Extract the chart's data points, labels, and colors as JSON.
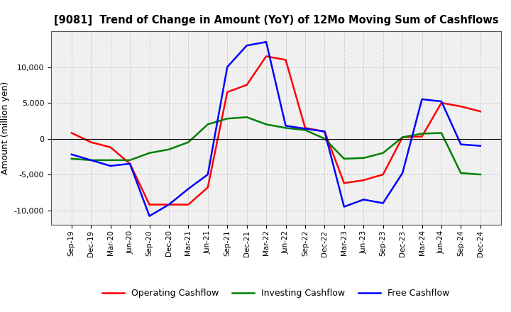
{
  "title": "[9081]  Trend of Change in Amount (YoY) of 12Mo Moving Sum of Cashflows",
  "ylabel": "Amount (million yen)",
  "xlabels": [
    "Sep-19",
    "Dec-19",
    "Mar-20",
    "Jun-20",
    "Sep-20",
    "Dec-20",
    "Mar-21",
    "Jun-21",
    "Sep-21",
    "Dec-21",
    "Mar-22",
    "Jun-22",
    "Sep-22",
    "Dec-22",
    "Mar-23",
    "Jun-23",
    "Sep-23",
    "Dec-23",
    "Mar-24",
    "Jun-24",
    "Sep-24",
    "Dec-24"
  ],
  "operating": [
    800,
    -500,
    -1200,
    -3500,
    -9200,
    -9200,
    -9200,
    -6800,
    6500,
    7500,
    11500,
    11000,
    1500,
    1000,
    -6200,
    -5800,
    -5000,
    200,
    300,
    5000,
    4500,
    3800
  ],
  "investing": [
    -2800,
    -3000,
    -3000,
    -3000,
    -2000,
    -1500,
    -500,
    2000,
    2800,
    3000,
    2000,
    1500,
    1200,
    0,
    -2800,
    -2700,
    -2000,
    200,
    700,
    800,
    -4800,
    -5000
  ],
  "free": [
    -2200,
    -3000,
    -3800,
    -3500,
    -10800,
    -9200,
    -7000,
    -5000,
    10000,
    13000,
    13500,
    1800,
    1400,
    1000,
    -9500,
    -8500,
    -9000,
    -4800,
    5500,
    5200,
    -800,
    -1000
  ],
  "ylim": [
    -12000,
    15000
  ],
  "yticks": [
    -10000,
    -5000,
    0,
    5000,
    10000
  ],
  "colors": {
    "operating": "#ff0000",
    "investing": "#008000",
    "free": "#0000ff"
  },
  "legend": [
    "Operating Cashflow",
    "Investing Cashflow",
    "Free Cashflow"
  ],
  "background": "#ffffff",
  "plot_bg": "#f0f0f0",
  "grid_color": "#999999"
}
